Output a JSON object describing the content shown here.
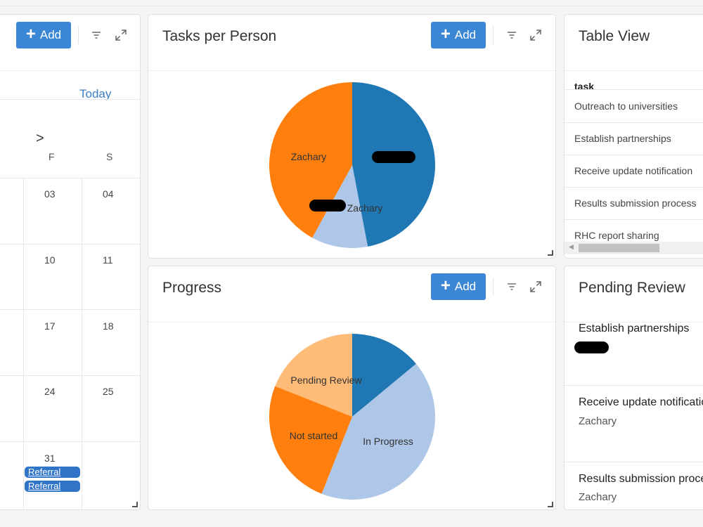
{
  "calendar": {
    "add_label": "Add",
    "today_label": "Today",
    "next_icon": ">",
    "day_headers": [
      "F",
      "S"
    ],
    "rows": [
      [
        "03",
        "04"
      ],
      [
        "10",
        "11"
      ],
      [
        "17",
        "18"
      ],
      [
        "24",
        "25"
      ],
      [
        "31",
        ""
      ]
    ],
    "events": [
      "Referral",
      "Referral"
    ]
  },
  "tasks_per_person": {
    "title": "Tasks per Person",
    "add_label": "Add",
    "chart_data": {
      "type": "pie",
      "labels": [
        "",
        "",
        "Zachary"
      ],
      "values": [
        47,
        11,
        42
      ],
      "colors": [
        "#1f77b4",
        "#aec7e8",
        "#ff7f0e"
      ],
      "slice_labels": [
        "",
        "Zachary",
        "Zachary"
      ]
    }
  },
  "progress": {
    "title": "Progress",
    "add_label": "Add",
    "chart_data": {
      "type": "pie",
      "labels": [
        "",
        "In Progress",
        "Not started",
        "Pending Review"
      ],
      "values": [
        14,
        42,
        25,
        19
      ],
      "colors": [
        "#1f77b4",
        "#aec7e8",
        "#ff7f0e",
        "#ffbb78"
      ]
    }
  },
  "table_view": {
    "title": "Table View",
    "column_header": "task",
    "rows": [
      "Outreach to universities",
      "Establish partnerships",
      "Receive update notification",
      "Results submission process",
      "RHC report sharing"
    ]
  },
  "pending_review": {
    "title": "Pending Review",
    "items": [
      {
        "title": "Establish partnerships",
        "assignee": ""
      },
      {
        "title": "Receive update notification",
        "assignee": "Zachary"
      },
      {
        "title": "Results submission process",
        "assignee": "Zachary"
      }
    ]
  }
}
